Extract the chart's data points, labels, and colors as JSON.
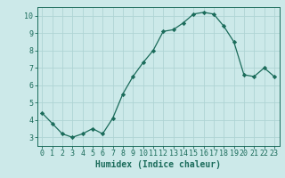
{
  "x": [
    0,
    1,
    2,
    3,
    4,
    5,
    6,
    7,
    8,
    9,
    10,
    11,
    12,
    13,
    14,
    15,
    16,
    17,
    18,
    19,
    20,
    21,
    22,
    23
  ],
  "y": [
    4.4,
    3.8,
    3.2,
    3.0,
    3.2,
    3.5,
    3.2,
    4.1,
    5.5,
    6.5,
    7.3,
    8.0,
    9.1,
    9.2,
    9.6,
    10.1,
    10.2,
    10.1,
    9.4,
    8.5,
    6.6,
    6.5,
    7.0,
    6.5
  ],
  "line_color": "#1a6b5a",
  "marker": "D",
  "marker_size": 2.2,
  "bg_color": "#cce9e9",
  "grid_color": "#afd4d4",
  "xlabel": "Humidex (Indice chaleur)",
  "xlim": [
    -0.5,
    23.5
  ],
  "ylim": [
    2.5,
    10.5
  ],
  "yticks": [
    3,
    4,
    5,
    6,
    7,
    8,
    9,
    10
  ],
  "xticks": [
    0,
    1,
    2,
    3,
    4,
    5,
    6,
    7,
    8,
    9,
    10,
    11,
    12,
    13,
    14,
    15,
    16,
    17,
    18,
    19,
    20,
    21,
    22,
    23
  ],
  "tick_color": "#1a6b5a",
  "axis_color": "#1a6b5a",
  "label_fontsize": 7,
  "tick_fontsize": 6
}
